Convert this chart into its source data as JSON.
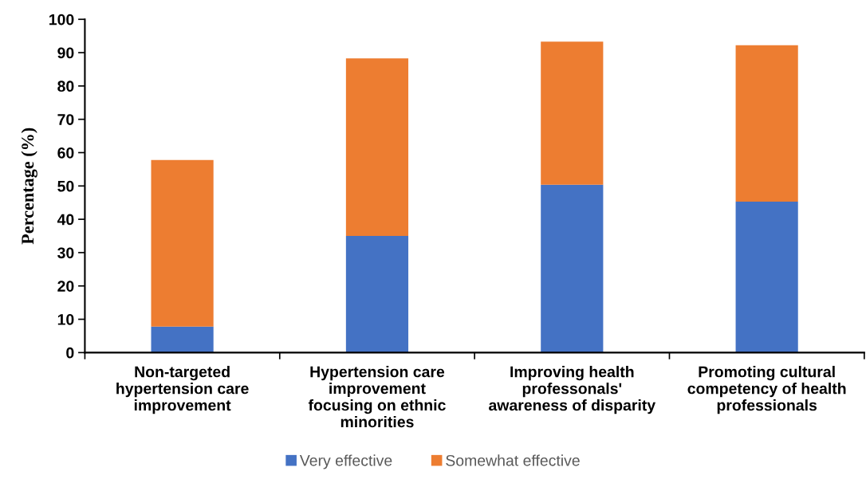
{
  "chart_data": {
    "type": "bar",
    "stacked": true,
    "ylabel": "Percentage (%)",
    "categories": [
      "Non-targeted\nhypertension care\nimprovement",
      "Hypertension care\nimprovement\nfocusing on ethnic\nminorities",
      "Improving health\nprofessonals'\nawareness of disparity",
      "Promoting cultural\ncompetency of health\nprofessionals"
    ],
    "series": [
      {
        "name": "Very effective",
        "color": "#4472c4",
        "values": [
          7.8,
          35.0,
          50.4,
          45.3
        ]
      },
      {
        "name": "Somewhat effective",
        "color": "#ed7d31",
        "values": [
          50.0,
          53.3,
          42.9,
          46.9
        ]
      }
    ],
    "ylim": [
      0,
      100
    ],
    "yticks": [
      0,
      10,
      20,
      30,
      40,
      50,
      60,
      70,
      80,
      90,
      100
    ],
    "grid": false,
    "legend": "bottom"
  }
}
